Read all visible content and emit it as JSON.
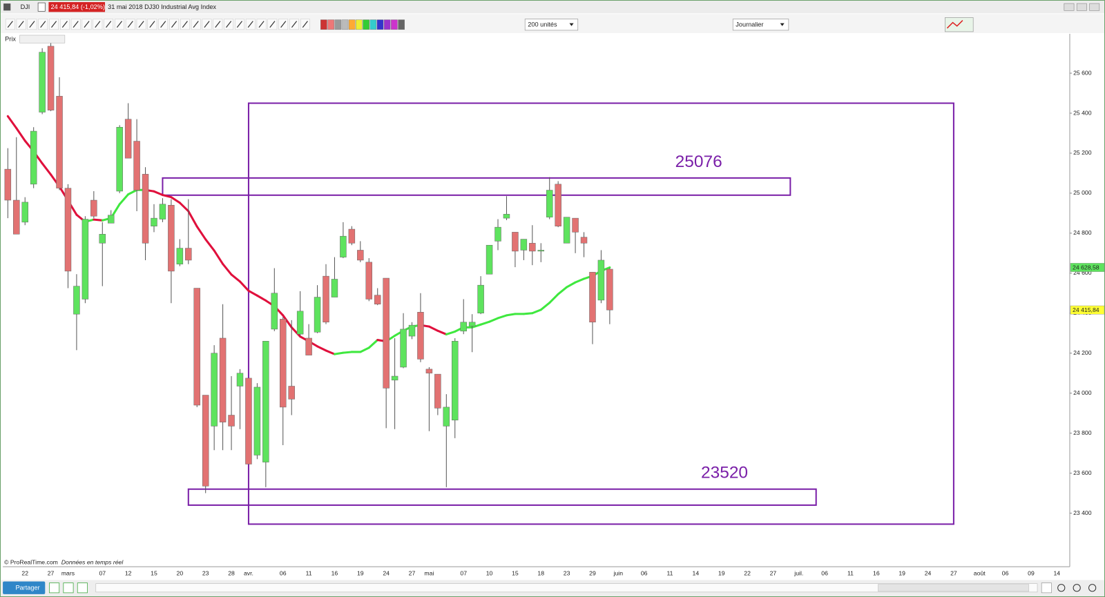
{
  "window": {
    "symbol": "DJI",
    "quote": "24 415,84 (-1,02%)",
    "description": "31 mai 2018 DJ30 Industrial Avg Index"
  },
  "toolbar": {
    "units": "200 unités",
    "period": "Journalier"
  },
  "panel": {
    "label": "Prix"
  },
  "footer": {
    "copyright": "© ProRealTime.com",
    "realtime": "Données en temps réel",
    "share": "Partager"
  },
  "chart_data": {
    "type": "candlestick",
    "categories": [
      null,
      null,
      "22",
      null,
      null,
      "27",
      null,
      "mars",
      null,
      null,
      null,
      "07",
      null,
      null,
      "12",
      null,
      null,
      "15",
      null,
      null,
      "20",
      null,
      null,
      "23",
      null,
      null,
      "28",
      null,
      "avr.",
      null,
      null,
      null,
      "06",
      null,
      null,
      "11",
      null,
      null,
      "16",
      null,
      null,
      "19",
      null,
      null,
      "24",
      null,
      null,
      "27",
      null,
      "mai",
      null,
      null,
      null,
      "07",
      null,
      null,
      "10",
      null,
      null,
      "15",
      null,
      null,
      "18",
      null,
      null,
      "23",
      null,
      null,
      "29",
      null,
      null,
      "juin",
      null,
      null,
      "06",
      null,
      null,
      "11",
      null,
      null,
      "14",
      null,
      null,
      "19",
      null,
      null,
      "22",
      null,
      null,
      "27",
      null,
      null,
      "juil.",
      null,
      null,
      "06",
      null,
      null,
      "11",
      null,
      null,
      "16",
      null,
      null,
      "19",
      null,
      null,
      "24",
      null,
      null,
      "27",
      null,
      null,
      "août",
      null,
      null,
      "06",
      null,
      null,
      "09",
      null,
      null,
      "14",
      null
    ],
    "open": [
      25120,
      24965,
      24855,
      25045,
      25405,
      25735,
      25485,
      25025,
      24395,
      24470,
      24965,
      24750,
      24850,
      25010,
      25370,
      25260,
      25095,
      24835,
      24870,
      24940,
      24645,
      24725,
      24525,
      23990,
      23835,
      24275,
      23890,
      24035,
      24075,
      23690,
      23655,
      24320,
      24370,
      24035,
      24295,
      24275,
      24305,
      24585,
      24480,
      24680,
      24820,
      24715,
      24655,
      24490,
      24575,
      24065,
      24130,
      24285,
      24405,
      24120,
      24095,
      23835,
      23865,
      24310,
      24335,
      24400,
      24595,
      24760,
      24875,
      24805,
      24715,
      24750,
      24710,
      24880,
      25045,
      24750,
      24875,
      24780,
      24605,
      24465,
      24620,
      null,
      null,
      null,
      null,
      null,
      null,
      null,
      null,
      null,
      null,
      null,
      null,
      null,
      null,
      null,
      null,
      null,
      null,
      null,
      null,
      null,
      null,
      null,
      null,
      null,
      null,
      null,
      null,
      null,
      null,
      null,
      null,
      null,
      null,
      null,
      null,
      null,
      null,
      null,
      null,
      null,
      null,
      null,
      null,
      null,
      null,
      null,
      null,
      null,
      null,
      null,
      null,
      null
    ],
    "high": [
      25225,
      25280,
      24980,
      25330,
      25725,
      25750,
      25580,
      25045,
      24595,
      24885,
      25010,
      24855,
      24915,
      25340,
      25450,
      25370,
      25130,
      24945,
      24975,
      24970,
      24770,
      24970,
      24525,
      23990,
      24240,
      24445,
      24085,
      24120,
      24075,
      24050,
      24260,
      24625,
      24380,
      24365,
      24510,
      24345,
      24540,
      24645,
      24680,
      24855,
      24835,
      24760,
      24675,
      24525,
      24575,
      24275,
      24400,
      24355,
      24500,
      24130,
      24095,
      23995,
      24275,
      24470,
      24395,
      24585,
      24740,
      24870,
      24985,
      24805,
      24770,
      24840,
      24750,
      25080,
      25060,
      24880,
      24875,
      24805,
      24605,
      24715,
      24625,
      null,
      null,
      null,
      null,
      null,
      null,
      null,
      null,
      null,
      null,
      null,
      null,
      null,
      null,
      null,
      null,
      null,
      null,
      null,
      null,
      null,
      null,
      null,
      null,
      null,
      null,
      null,
      null,
      null,
      null,
      null,
      null,
      null,
      null,
      null,
      null,
      null,
      null,
      null,
      null,
      null,
      null,
      null,
      null,
      null,
      null,
      null,
      null,
      null,
      null,
      null,
      null,
      null
    ],
    "low": [
      24875,
      24795,
      24840,
      25025,
      25395,
      25410,
      25015,
      24525,
      24215,
      24450,
      24875,
      24535,
      24850,
      25000,
      25175,
      24910,
      24665,
      24805,
      24855,
      24450,
      24635,
      24645,
      23930,
      23500,
      23715,
      23715,
      23715,
      23820,
      23645,
      23670,
      23530,
      24310,
      23740,
      23890,
      24285,
      24190,
      24300,
      24345,
      24480,
      24675,
      24740,
      24655,
      24460,
      24440,
      23825,
      23820,
      24125,
      24270,
      24155,
      23810,
      23890,
      23530,
      23775,
      24295,
      24205,
      24395,
      24595,
      24715,
      24865,
      24630,
      24665,
      24640,
      24655,
      24870,
      24830,
      24750,
      24700,
      24680,
      24245,
      24450,
      24345,
      null,
      null,
      null,
      null,
      null,
      null,
      null,
      null,
      null,
      null,
      null,
      null,
      null,
      null,
      null,
      null,
      null,
      null,
      null,
      null,
      null,
      null,
      null,
      null,
      null,
      null,
      null,
      null,
      null,
      null,
      null,
      null,
      null,
      null,
      null,
      null,
      null,
      null,
      null,
      null,
      null,
      null,
      null,
      null,
      null,
      null,
      null,
      null,
      null,
      null,
      null,
      null,
      null
    ],
    "close": [
      24965,
      24795,
      24955,
      25310,
      25705,
      25415,
      25025,
      24610,
      24535,
      24870,
      24885,
      24795,
      24890,
      25330,
      25175,
      25015,
      24750,
      24875,
      24945,
      24610,
      24725,
      24665,
      23940,
      23535,
      24200,
      23855,
      23835,
      24100,
      23645,
      24030,
      24260,
      24500,
      23930,
      23970,
      24410,
      24190,
      24480,
      24355,
      24570,
      24785,
      24750,
      24665,
      24470,
      24445,
      24025,
      24085,
      24320,
      24340,
      24170,
      24100,
      23925,
      23930,
      24260,
      24355,
      24355,
      24540,
      24740,
      24830,
      24895,
      24710,
      24770,
      24710,
      24715,
      25015,
      24835,
      24880,
      24805,
      24750,
      24355,
      24665,
      24415.84,
      null,
      null,
      null,
      null,
      null,
      null,
      null,
      null,
      null,
      null,
      null,
      null,
      null,
      null,
      null,
      null,
      null,
      null,
      null,
      null,
      null,
      null,
      null,
      null,
      null,
      null,
      null,
      null,
      null,
      null,
      null,
      null,
      null,
      null,
      null,
      null,
      null,
      null,
      null,
      null,
      null,
      null,
      null,
      null,
      null,
      null,
      null,
      null,
      null,
      null,
      null,
      null,
      null
    ],
    "up_color": "#5ee35e",
    "down_color": "#e27272",
    "moving_average": {
      "up_color": "#3fe83f",
      "down_color": "#e0103c",
      "values": [
        25385,
        25325,
        25262,
        25209,
        25149,
        25093,
        25033,
        24963,
        24892,
        24857,
        24868,
        24864,
        24875,
        24945,
        24994,
        25016,
        25016,
        25009,
        24991,
        24980,
        24952,
        24910,
        24833,
        24769,
        24713,
        24646,
        24593,
        24558,
        24512,
        24488,
        24463,
        24435,
        24389,
        24329,
        24283,
        24259,
        24234,
        24213,
        24195,
        24202,
        24206,
        24206,
        24227,
        24266,
        24259,
        24287,
        24312,
        24333,
        24340,
        24333,
        24312,
        24294,
        24308,
        24329,
        24329,
        24343,
        24357,
        24375,
        24389,
        24396,
        24396,
        24400,
        24417,
        24452,
        24495,
        24530,
        24554,
        24572,
        24586,
        24611,
        24628.58,
        null,
        null,
        null,
        null,
        null,
        null,
        null,
        null,
        null,
        null,
        null,
        null,
        null,
        null,
        null,
        null,
        null,
        null,
        null,
        null,
        null,
        null,
        null,
        null,
        null,
        null,
        null,
        null,
        null,
        null,
        null,
        null,
        null,
        null,
        null,
        null,
        null,
        null,
        null,
        null,
        null,
        null,
        null,
        null,
        null,
        null,
        null,
        null,
        null,
        null,
        null,
        null,
        null
      ]
    },
    "ylim": [
      23132,
      25797
    ],
    "yticks": [
      {
        "value": 23400,
        "label": "23 400"
      },
      {
        "value": 23600,
        "label": "23 600"
      },
      {
        "value": 23800,
        "label": "23 800"
      },
      {
        "value": 24000,
        "label": "24 000"
      },
      {
        "value": 24200,
        "label": "24 200"
      },
      {
        "value": 24400,
        "label": "24 400"
      },
      {
        "value": 24600,
        "label": "24 600"
      },
      {
        "value": 24800,
        "label": "24 800"
      },
      {
        "value": 25000,
        "label": "25 000"
      },
      {
        "value": 25200,
        "label": "25 200"
      },
      {
        "value": 25400,
        "label": "25 400"
      },
      {
        "value": 25600,
        "label": "25 600"
      }
    ],
    "price_tags": [
      {
        "value": 24628.58,
        "label": "24 628,58",
        "color": "#5ee35e"
      },
      {
        "value": 24415.84,
        "label": "24 415,84",
        "color": "#ffff33"
      }
    ],
    "zones": [
      {
        "xlim": [
          28,
          110
        ],
        "ylim": [
          23345,
          25450
        ],
        "labeled": false
      },
      {
        "xlim": [
          18,
          91
        ],
        "ylim": [
          24990,
          25076
        ],
        "labeled": true
      },
      {
        "xlim": [
          21,
          94
        ],
        "ylim": [
          23440,
          23520
        ],
        "labeled": true
      }
    ],
    "zone_color": "#7a1fa8",
    "grid": false
  }
}
